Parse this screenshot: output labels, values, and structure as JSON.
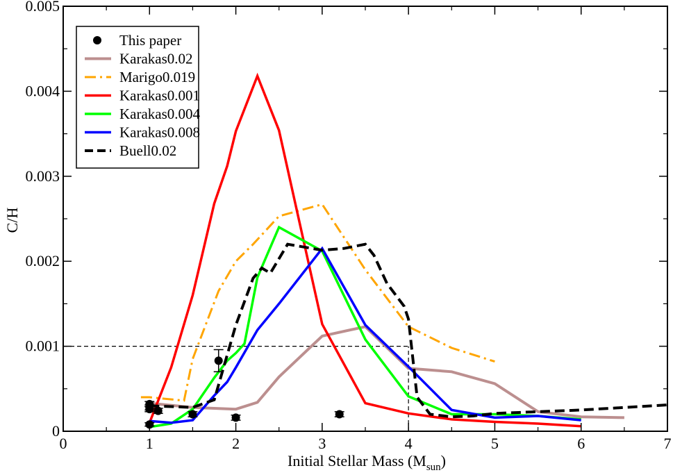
{
  "chart_data": {
    "type": "line",
    "title": "",
    "xlabel": "Initial Stellar Mass (M",
    "xlabel_sub": "sun",
    "xlabel_close": ")",
    "ylabel": "C/H",
    "xlim": [
      0,
      7
    ],
    "ylim": [
      0,
      0.005
    ],
    "x_ticks": [
      0,
      1,
      2,
      3,
      4,
      5,
      6,
      7
    ],
    "y_ticks": [
      0,
      0.001,
      0.002,
      0.003,
      0.004,
      0.005
    ],
    "x_tick_labels": [
      "0",
      "1",
      "2",
      "3",
      "4",
      "5",
      "6",
      "7"
    ],
    "y_tick_labels": [
      "0",
      "0.001",
      "0.002",
      "0.003",
      "0.004",
      "0.005"
    ],
    "grid": false,
    "legend_position": "top-left",
    "reference_lines": [
      {
        "orientation": "horizontal",
        "points": [
          [
            0,
            0.001
          ],
          [
            4,
            0.001
          ]
        ],
        "style": "dashed",
        "color": "#000000"
      },
      {
        "orientation": "vertical",
        "points": [
          [
            4,
            0
          ],
          [
            4,
            0.001
          ]
        ],
        "style": "dashed",
        "color": "#000000"
      }
    ],
    "series": [
      {
        "name": "This paper",
        "kind": "points",
        "color": "#000000",
        "points": [
          {
            "x": 1.0,
            "y": 0.00032,
            "err": 3e-05
          },
          {
            "x": 1.0,
            "y": 0.00028,
            "err": 3e-05
          },
          {
            "x": 1.0,
            "y": 0.00026,
            "err": 3e-05
          },
          {
            "x": 1.0,
            "y": 8e-05,
            "err": 2e-05
          },
          {
            "x": 1.1,
            "y": 0.00024,
            "err": 3e-05
          },
          {
            "x": 1.5,
            "y": 0.0002,
            "err": 3e-05
          },
          {
            "x": 1.8,
            "y": 0.00083,
            "err": 0.00013
          },
          {
            "x": 2.0,
            "y": 0.00016,
            "err": 3e-05
          },
          {
            "x": 3.2,
            "y": 0.0002,
            "err": 3e-05
          }
        ]
      },
      {
        "name": "Karakas0.02",
        "kind": "line",
        "color": "#bc8f8f",
        "dash": "solid",
        "width": 4,
        "x": [
          1,
          1.5,
          2,
          2.25,
          2.5,
          3,
          3.5,
          4,
          4.5,
          5,
          5.5,
          6,
          6.5
        ],
        "y": [
          0.00033,
          0.00028,
          0.00026,
          0.00034,
          0.00064,
          0.00112,
          0.00123,
          0.00074,
          0.0007,
          0.00056,
          0.00023,
          0.00017,
          0.00016
        ]
      },
      {
        "name": "Marigo0.019",
        "kind": "line",
        "color": "#ffa500",
        "dash": "dashdot",
        "width": 3,
        "x": [
          0.9,
          1.0,
          1.2,
          1.4,
          1.5,
          1.8,
          2.0,
          2.2,
          2.5,
          3.0,
          3.5,
          4.0,
          4.5,
          5.0
        ],
        "y": [
          0.0004,
          0.0004,
          0.00038,
          0.00036,
          0.00085,
          0.00165,
          0.002,
          0.0022,
          0.00253,
          0.00267,
          0.0019,
          0.00123,
          0.00098,
          0.00082
        ]
      },
      {
        "name": "Karakas0.001",
        "kind": "line",
        "color": "#ff0000",
        "dash": "solid",
        "width": 3.5,
        "x": [
          1,
          1.25,
          1.5,
          1.75,
          1.9,
          2.0,
          2.25,
          2.5,
          3.0,
          3.5,
          4.0,
          4.5,
          5.0,
          5.5,
          6.0
        ],
        "y": [
          0.0001,
          0.00075,
          0.0016,
          0.00268,
          0.00312,
          0.00353,
          0.00418,
          0.00354,
          0.00126,
          0.00033,
          0.00021,
          0.00014,
          0.00011,
          9e-05,
          6e-05
        ]
      },
      {
        "name": "Karakas0.004",
        "kind": "line",
        "color": "#00ff00",
        "dash": "solid",
        "width": 3.5,
        "x": [
          1,
          1.25,
          1.5,
          1.75,
          1.9,
          2.0,
          2.1,
          2.25,
          2.5,
          3.0,
          3.5,
          4.0,
          4.5,
          5.0,
          5.5,
          6.0
        ],
        "y": [
          5e-05,
          9e-05,
          0.00026,
          0.00063,
          0.00083,
          0.00092,
          0.00103,
          0.00181,
          0.0024,
          0.00212,
          0.00108,
          0.00041,
          0.0002,
          0.0002,
          0.00018,
          0.00014
        ]
      },
      {
        "name": "Karakas0.008",
        "kind": "line",
        "color": "#0000ff",
        "dash": "solid",
        "width": 3.5,
        "x": [
          1,
          1.25,
          1.5,
          1.75,
          1.9,
          2.0,
          2.25,
          2.5,
          3.0,
          3.5,
          4.0,
          4.5,
          5.0,
          5.5,
          6.0
        ],
        "y": [
          0.00012,
          0.0001,
          0.00013,
          0.00042,
          0.00058,
          0.00075,
          0.00119,
          0.0015,
          0.00215,
          0.00125,
          0.00076,
          0.00025,
          0.00016,
          0.00018,
          0.00013
        ]
      },
      {
        "name": "Buell0.02",
        "kind": "line",
        "color": "#000000",
        "dash": "dashed",
        "width": 4,
        "x": [
          1.0,
          1.5,
          1.75,
          2.0,
          2.2,
          2.3,
          2.4,
          2.6,
          3.0,
          3.25,
          3.5,
          3.6,
          3.75,
          3.95,
          4.0,
          4.1,
          4.25,
          4.5,
          4.75,
          5.0,
          6.0,
          7.0
        ],
        "y": [
          0.0003,
          0.00028,
          0.00037,
          0.00125,
          0.0018,
          0.00192,
          0.00186,
          0.0022,
          0.00213,
          0.00215,
          0.0022,
          0.00207,
          0.00174,
          0.00147,
          0.00132,
          0.0004,
          0.0002,
          0.00017,
          0.00018,
          0.00021,
          0.00025,
          0.00031
        ]
      }
    ]
  }
}
